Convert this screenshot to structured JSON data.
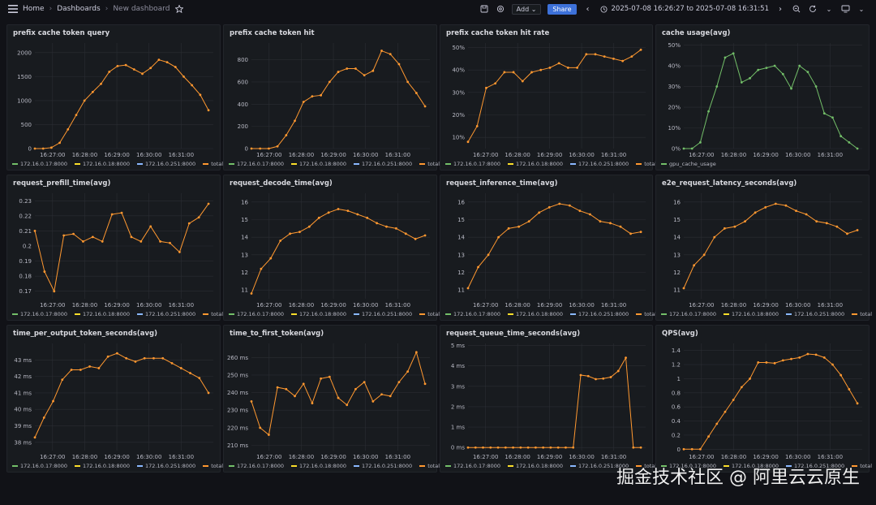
{
  "header": {
    "breadcrumbs": [
      "Home",
      "Dashboards",
      "New dashboard"
    ],
    "add_label": "Add",
    "share_label": "Share",
    "time_range": "2025-07-08 16:26:27 to 2025-07-08 16:31:51"
  },
  "colors": {
    "series": {
      "s1": "#73bf69",
      "s2": "#fade2a",
      "s3": "#8ab8ff",
      "total": "#ff9830"
    },
    "grid": "#2a2d33"
  },
  "xticks": [
    "16:27:00",
    "16:28:00",
    "16:29:00",
    "16:30:00",
    "16:31:00"
  ],
  "legend_default": [
    {
      "name": "172.16.0.17:8000",
      "color": "#73bf69"
    },
    {
      "name": "172.16.0.18:8000",
      "color": "#fade2a"
    },
    {
      "name": "172.16.0.251:8000",
      "color": "#8ab8ff"
    },
    {
      "name": "total",
      "color": "#ff9830"
    }
  ],
  "legend_cache": [
    {
      "name": "gpu_cache_usage",
      "color": "#73bf69"
    }
  ],
  "watermark": "掘金技术社区 @ 阿里云云原生",
  "chart_data": [
    {
      "id": "p1",
      "type": "line",
      "title": "prefix cache token query",
      "ylim": [
        0,
        2200
      ],
      "yticks": [
        0,
        500,
        1000,
        1500,
        2000
      ],
      "ytick_labels": [
        "0",
        "500",
        "1000",
        "1500",
        "2000"
      ],
      "x_start": 0.0,
      "x_end": 5.4,
      "series": [
        {
          "name": "total",
          "color": "#ff9830",
          "values": [
            0,
            0,
            20,
            120,
            400,
            700,
            1000,
            1180,
            1350,
            1600,
            1720,
            1740,
            1650,
            1560,
            1680,
            1850,
            1800,
            1700,
            1500,
            1320,
            1120,
            800
          ]
        }
      ],
      "legend": "default"
    },
    {
      "id": "p2",
      "type": "line",
      "title": "prefix cache token hit",
      "ylim": [
        0,
        950
      ],
      "yticks": [
        0,
        200,
        400,
        600,
        800
      ],
      "ytick_labels": [
        "0",
        "200",
        "400",
        "600",
        "800"
      ],
      "x_start": 0.0,
      "x_end": 5.4,
      "series": [
        {
          "name": "total",
          "color": "#ff9830",
          "values": [
            0,
            0,
            0,
            20,
            120,
            250,
            420,
            470,
            480,
            600,
            690,
            720,
            720,
            660,
            700,
            880,
            850,
            760,
            600,
            500,
            380
          ]
        }
      ],
      "legend": "default"
    },
    {
      "id": "p3",
      "type": "line",
      "title": "prefix cache token hit rate",
      "ylim": [
        5,
        52
      ],
      "yticks": [
        10,
        20,
        30,
        40,
        50
      ],
      "ytick_labels": [
        "10%",
        "20%",
        "30%",
        "40%",
        "50%"
      ],
      "x_start": 0.0,
      "x_end": 5.4,
      "series": [
        {
          "name": "total",
          "color": "#ff9830",
          "values": [
            8,
            15,
            32,
            34,
            39,
            39,
            35,
            39,
            40,
            41,
            43,
            41,
            41,
            47,
            47,
            46,
            45,
            44,
            46,
            49
          ]
        }
      ],
      "legend": "default"
    },
    {
      "id": "p4",
      "type": "line",
      "title": "cache usage(avg)",
      "ylim": [
        0,
        51
      ],
      "yticks": [
        0,
        10,
        20,
        30,
        40,
        50
      ],
      "ytick_labels": [
        "0%",
        "10%",
        "20%",
        "30%",
        "40%",
        "50%"
      ],
      "x_start": 0.0,
      "x_end": 5.4,
      "series": [
        {
          "name": "gpu_cache_usage",
          "color": "#73bf69",
          "values": [
            0,
            0,
            3,
            18,
            30,
            44,
            46,
            32,
            34,
            38,
            39,
            40,
            36,
            29,
            40,
            37,
            30,
            17,
            15,
            6,
            3,
            0
          ]
        }
      ],
      "legend": "cache"
    },
    {
      "id": "p5",
      "type": "line",
      "title": "request_prefill_time(avg)",
      "ylim": [
        0.165,
        0.235
      ],
      "yticks": [
        0.17,
        0.18,
        0.19,
        0.2,
        0.21,
        0.22,
        0.23
      ],
      "ytick_labels": [
        "0.17",
        "0.18",
        "0.19",
        "0.2",
        "0.21",
        "0.22",
        "0.23"
      ],
      "x_start": 0.0,
      "x_end": 5.4,
      "series": [
        {
          "name": "total",
          "color": "#ff9830",
          "values": [
            0.21,
            0.183,
            0.17,
            0.207,
            0.208,
            0.203,
            0.206,
            0.203,
            0.221,
            0.222,
            0.206,
            0.203,
            0.213,
            0.203,
            0.202,
            0.196,
            0.215,
            0.219,
            0.228
          ]
        }
      ],
      "legend": "default"
    },
    {
      "id": "p6",
      "type": "line",
      "title": "request_decode_time(avg)",
      "ylim": [
        10.5,
        16.5
      ],
      "yticks": [
        11,
        12,
        13,
        14,
        15,
        16
      ],
      "ytick_labels": [
        "11",
        "12",
        "13",
        "14",
        "15",
        "16"
      ],
      "x_start": 0.0,
      "x_end": 5.4,
      "series": [
        {
          "name": "total",
          "color": "#ff9830",
          "values": [
            10.8,
            12.2,
            12.8,
            13.8,
            14.2,
            14.3,
            14.6,
            15.1,
            15.4,
            15.6,
            15.5,
            15.3,
            15.1,
            14.8,
            14.6,
            14.5,
            14.2,
            13.9,
            14.1
          ]
        }
      ],
      "legend": "default"
    },
    {
      "id": "p7",
      "type": "line",
      "title": "request_inference_time(avg)",
      "ylim": [
        10.5,
        16.5
      ],
      "yticks": [
        11,
        12,
        13,
        14,
        15,
        16
      ],
      "ytick_labels": [
        "11",
        "12",
        "13",
        "14",
        "15",
        "16"
      ],
      "x_start": 0.0,
      "x_end": 5.4,
      "series": [
        {
          "name": "total",
          "color": "#ff9830",
          "values": [
            11.1,
            12.3,
            13.0,
            14.0,
            14.5,
            14.6,
            14.9,
            15.4,
            15.7,
            15.9,
            15.8,
            15.5,
            15.3,
            14.9,
            14.8,
            14.6,
            14.2,
            14.3
          ]
        }
      ],
      "legend": "default"
    },
    {
      "id": "p8",
      "type": "line",
      "title": "e2e_request_latency_seconds(avg)",
      "ylim": [
        10.5,
        16.5
      ],
      "yticks": [
        11,
        12,
        13,
        14,
        15,
        16
      ],
      "ytick_labels": [
        "11",
        "12",
        "13",
        "14",
        "15",
        "16"
      ],
      "x_start": 0.0,
      "x_end": 5.4,
      "series": [
        {
          "name": "total",
          "color": "#ff9830",
          "values": [
            11.1,
            12.4,
            13.0,
            14.0,
            14.5,
            14.6,
            14.9,
            15.4,
            15.7,
            15.9,
            15.8,
            15.5,
            15.3,
            14.9,
            14.8,
            14.6,
            14.2,
            14.4
          ]
        }
      ],
      "legend": "default"
    },
    {
      "id": "p9",
      "type": "line",
      "title": "time_per_output_token_seconds(avg)",
      "ylim": [
        37.5,
        44
      ],
      "yticks": [
        38,
        39,
        40,
        41,
        42,
        43
      ],
      "ytick_labels": [
        "38 ms",
        "39 ms",
        "40 ms",
        "41 ms",
        "42 ms",
        "43 ms"
      ],
      "x_start": 0.0,
      "x_end": 5.4,
      "series": [
        {
          "name": "total",
          "color": "#ff9830",
          "values": [
            38.3,
            39.5,
            40.5,
            41.8,
            42.4,
            42.4,
            42.6,
            42.5,
            43.2,
            43.4,
            43.1,
            42.9,
            43.1,
            43.1,
            43.1,
            42.8,
            42.5,
            42.2,
            41.9,
            41.0
          ]
        }
      ],
      "legend": "default"
    },
    {
      "id": "p10",
      "type": "line",
      "title": "time_to_first_token(avg)",
      "ylim": [
        207,
        268
      ],
      "yticks": [
        210,
        220,
        230,
        240,
        250,
        260
      ],
      "ytick_labels": [
        "210 ms",
        "220 ms",
        "230 ms",
        "240 ms",
        "250 ms",
        "260 ms"
      ],
      "x_start": 0.0,
      "x_end": 5.4,
      "series": [
        {
          "name": "total",
          "color": "#ff9830",
          "values": [
            235,
            220,
            216,
            243,
            242,
            238,
            245,
            234,
            248,
            249,
            237,
            233,
            242,
            246,
            235,
            239,
            238,
            246,
            252,
            263,
            245
          ]
        }
      ],
      "legend": "default"
    },
    {
      "id": "p11",
      "type": "line",
      "title": "request_queue_time_seconds(avg)",
      "ylim": [
        -0.15,
        5.1
      ],
      "yticks": [
        0,
        1,
        2,
        3,
        4,
        5
      ],
      "ytick_labels": [
        "0 ms",
        "1 ms",
        "2 ms",
        "3 ms",
        "4 ms",
        "5 ms"
      ],
      "x_start": 0.0,
      "x_end": 5.4,
      "series": [
        {
          "name": "total",
          "color": "#ff9830",
          "values": [
            0,
            0,
            0,
            0,
            0,
            0,
            0,
            0,
            0,
            0,
            0,
            0,
            0,
            0,
            0,
            3.55,
            3.5,
            3.35,
            3.38,
            3.45,
            3.75,
            4.4,
            0,
            0
          ]
        }
      ],
      "legend": "default"
    },
    {
      "id": "p12",
      "type": "line",
      "title": "QPS(avg)",
      "ylim": [
        -0.02,
        1.5
      ],
      "yticks": [
        0,
        0.2,
        0.4,
        0.6,
        0.8,
        1.0,
        1.2,
        1.4
      ],
      "ytick_labels": [
        "0",
        "0.2",
        "0.4",
        "0.6",
        "0.8",
        "1",
        "1.2",
        "1.4"
      ],
      "x_start": 0.0,
      "x_end": 5.4,
      "series": [
        {
          "name": "total",
          "color": "#ff9830",
          "values": [
            0,
            0,
            0,
            0.18,
            0.36,
            0.53,
            0.7,
            0.88,
            1.0,
            1.23,
            1.23,
            1.22,
            1.26,
            1.28,
            1.3,
            1.35,
            1.34,
            1.3,
            1.2,
            1.05,
            0.85,
            0.65
          ]
        }
      ],
      "legend": "default"
    }
  ]
}
